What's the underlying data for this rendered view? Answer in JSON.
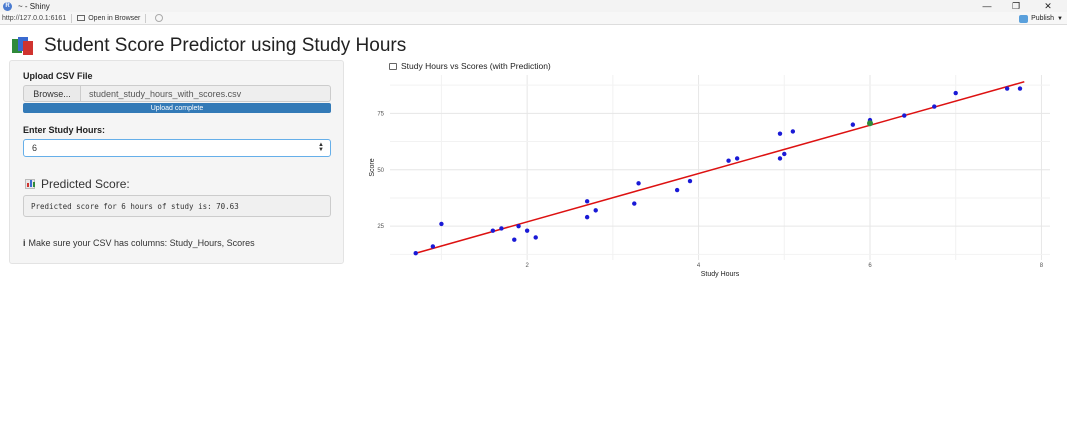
{
  "window": {
    "title": "~ - Shiny",
    "url": "http://127.0.0.1:6161",
    "open_in_browser": "Open in Browser",
    "publish": "Publish"
  },
  "app": {
    "title": "Student Score Predictor using Study Hours"
  },
  "sidebar": {
    "upload_label": "Upload CSV File",
    "browse_label": "Browse...",
    "file_name": "student_study_hours_with_scores.csv",
    "upload_status": "Upload complete",
    "hours_label": "Enter Study Hours:",
    "hours_value": "6",
    "predicted_heading": "Predicted Score:",
    "predicted_text": "Predicted score for 6 hours of study is: 70.63",
    "note_icon": "i",
    "note": "Make sure your CSV has columns: Study_Hours, Scores"
  },
  "plot": {
    "title": "Study Hours vs Scores (with Prediction)"
  },
  "chart_data": {
    "type": "scatter",
    "title": "Study Hours vs Scores (with Prediction)",
    "xlabel": "Study Hours",
    "ylabel": "Score",
    "xlim": [
      0.4,
      8.1
    ],
    "ylim": [
      10,
      92
    ],
    "xticks": [
      2,
      4,
      6,
      8
    ],
    "yticks": [
      25,
      50,
      75
    ],
    "grid": true,
    "points": [
      [
        0.7,
        13
      ],
      [
        0.9,
        16
      ],
      [
        1.0,
        26
      ],
      [
        1.6,
        23
      ],
      [
        1.7,
        24
      ],
      [
        1.85,
        19
      ],
      [
        1.9,
        25
      ],
      [
        2.0,
        23
      ],
      [
        2.1,
        20
      ],
      [
        2.7,
        29
      ],
      [
        2.7,
        36
      ],
      [
        2.8,
        32
      ],
      [
        3.25,
        35
      ],
      [
        3.3,
        44
      ],
      [
        3.75,
        41
      ],
      [
        3.9,
        45
      ],
      [
        4.35,
        54
      ],
      [
        4.45,
        55
      ],
      [
        4.95,
        55
      ],
      [
        4.95,
        66
      ],
      [
        5.0,
        57
      ],
      [
        5.1,
        67
      ],
      [
        5.8,
        70
      ],
      [
        6.0,
        72
      ],
      [
        6.4,
        74
      ],
      [
        6.75,
        78
      ],
      [
        7.0,
        84
      ],
      [
        7.6,
        86
      ],
      [
        7.75,
        86
      ]
    ],
    "regression_line": {
      "x": [
        0.7,
        7.8
      ],
      "y": [
        13,
        89
      ],
      "color": "#dd1111"
    },
    "prediction_point": {
      "x": 6,
      "y": 70.63,
      "color": "#2e8b3a"
    },
    "point_color": "#1a1ad6"
  }
}
